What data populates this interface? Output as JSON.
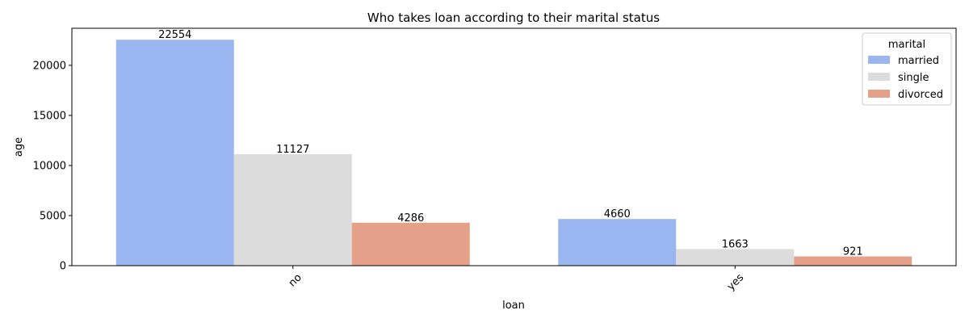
{
  "chart_data": {
    "type": "bar",
    "title": "Who takes loan according to their marital status",
    "xlabel": "loan",
    "ylabel": "age",
    "categories": [
      "no",
      "yes"
    ],
    "ylim": [
      0,
      23700
    ],
    "yticks": [
      0,
      5000,
      10000,
      15000,
      20000
    ],
    "grid": false,
    "legend": {
      "title": "marital",
      "placement": "top-right"
    },
    "series": [
      {
        "name": "married",
        "color": "#9ab6f1",
        "values": [
          22554,
          4660
        ]
      },
      {
        "name": "single",
        "color": "#dcdcdc",
        "values": [
          11127,
          1663
        ]
      },
      {
        "name": "divorced",
        "color": "#e5a089",
        "values": [
          4286,
          921
        ]
      }
    ]
  }
}
